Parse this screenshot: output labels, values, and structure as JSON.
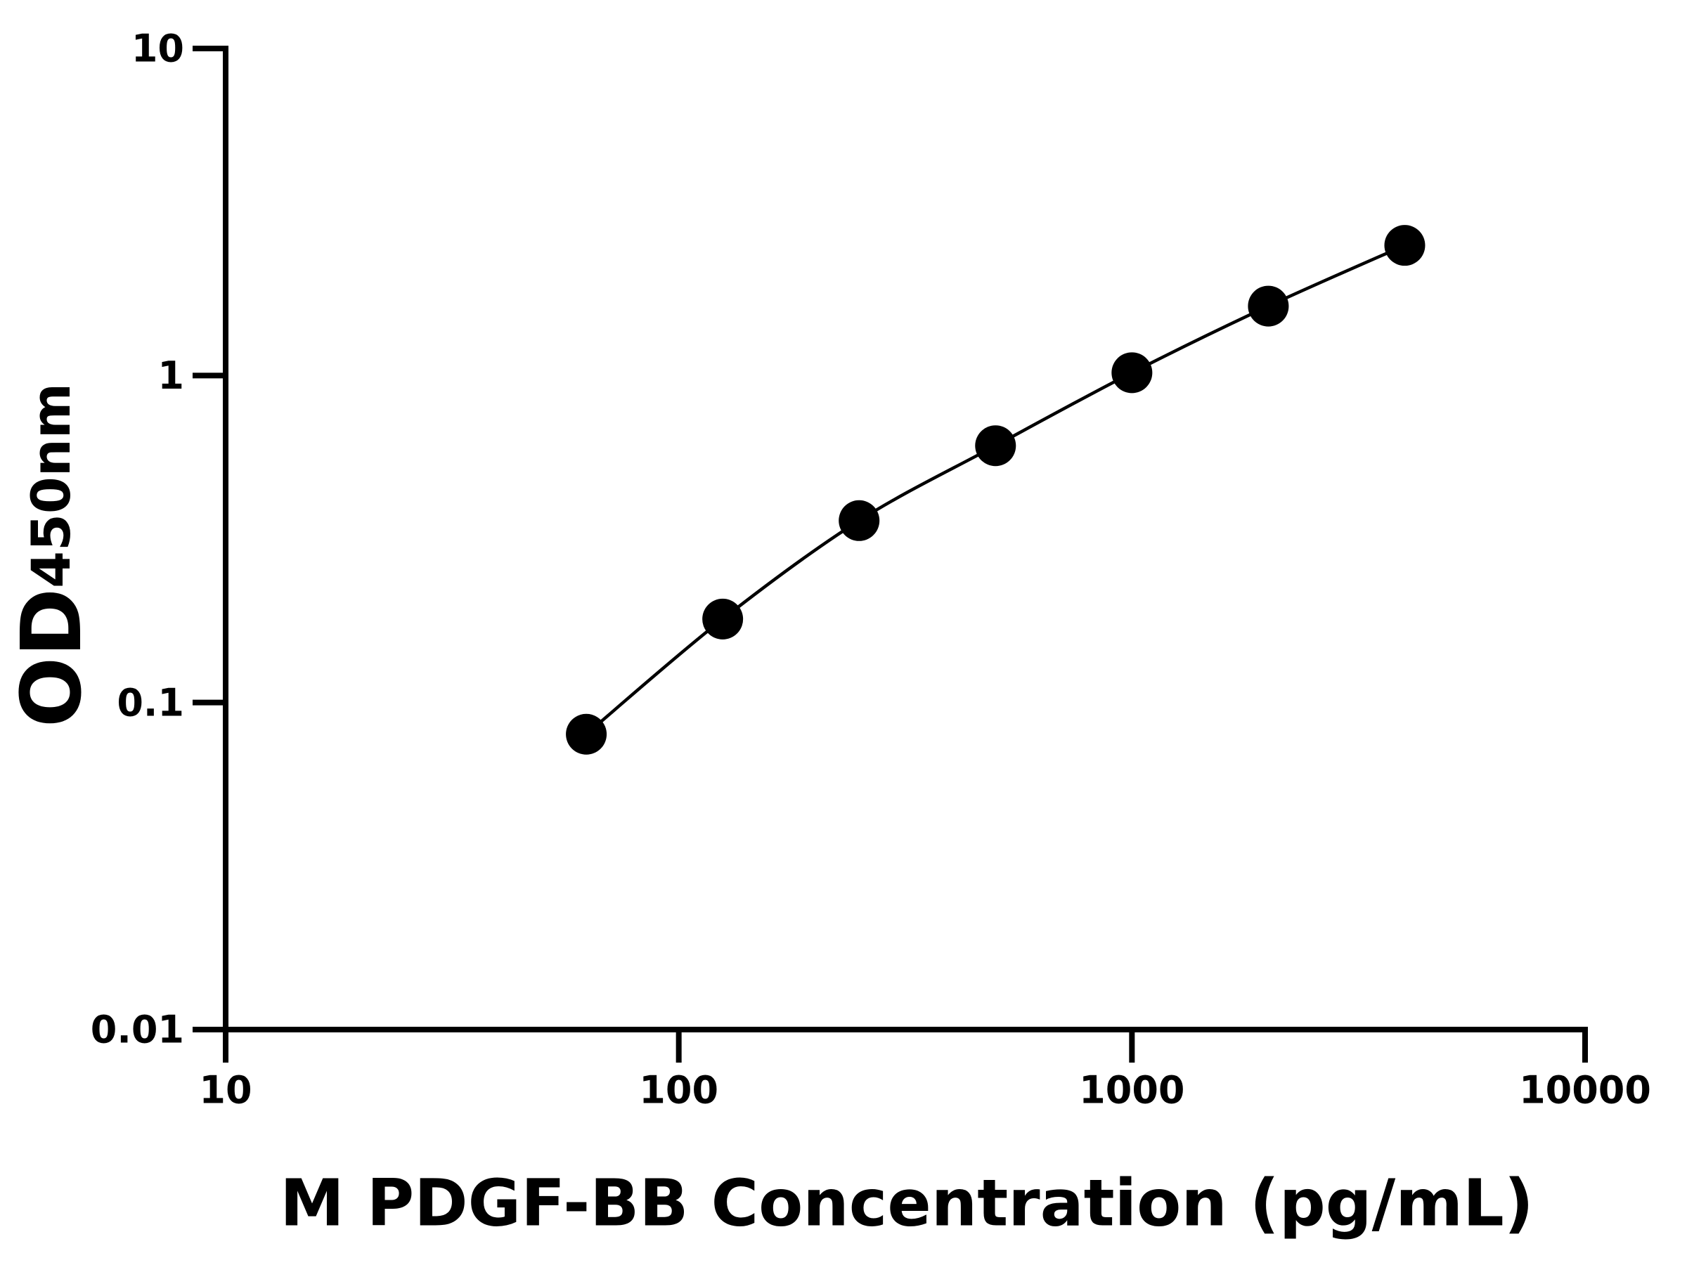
{
  "chart_data": {
    "type": "scatter",
    "x_label": "M PDGF-BB Concentration (pg/mL)",
    "y_label": "OD",
    "y_label_subscript": "450nm",
    "x": [
      62.5,
      125,
      250,
      500,
      1000,
      2000,
      4000
    ],
    "values": [
      0.08,
      0.18,
      0.36,
      0.61,
      1.02,
      1.63,
      2.5
    ],
    "color": "#000000",
    "fit_curve": true,
    "x_log": true,
    "y_log": true,
    "xlim": [
      10,
      10000
    ],
    "xticks": [
      10,
      100,
      1000,
      10000
    ],
    "ylim": [
      0.01,
      10
    ],
    "yticks": [
      0.01,
      0.1,
      1,
      10
    ]
  }
}
